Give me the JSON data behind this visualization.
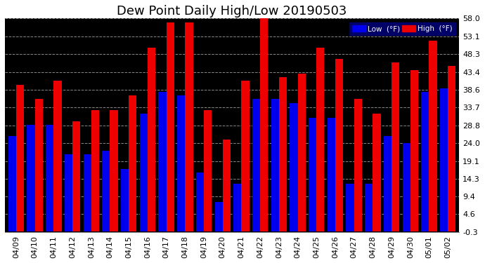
{
  "title": "Dew Point Daily High/Low 20190503",
  "dates": [
    "04/09",
    "04/10",
    "04/11",
    "04/12",
    "04/13",
    "04/14",
    "04/15",
    "04/16",
    "04/17",
    "04/18",
    "04/19",
    "04/20",
    "04/21",
    "04/22",
    "04/23",
    "04/24",
    "04/25",
    "04/26",
    "04/27",
    "04/28",
    "04/29",
    "04/30",
    "05/01",
    "05/02"
  ],
  "low": [
    26,
    29,
    29,
    21,
    21,
    22,
    17,
    32,
    38,
    37,
    16,
    8,
    13,
    36,
    36,
    35,
    31,
    31,
    13,
    13,
    26,
    24,
    38,
    39
  ],
  "high": [
    40,
    36,
    41,
    30,
    33,
    33,
    37,
    50,
    57,
    57,
    33,
    25,
    41,
    58,
    42,
    43,
    50,
    47,
    36,
    32,
    46,
    44,
    52,
    45
  ],
  "low_color": "#0000ee",
  "high_color": "#ee0000",
  "bg_color": "#000000",
  "plot_bg_color": "#000000",
  "grid_color": "#888888",
  "ylim": [
    -0.3,
    58.0
  ],
  "yticks": [
    -0.3,
    4.6,
    9.4,
    14.3,
    19.1,
    24.0,
    28.8,
    33.7,
    38.6,
    43.4,
    48.3,
    53.1,
    58.0
  ],
  "ytick_labels": [
    "-0.3",
    "4.6",
    "9.4",
    "14.3",
    "19.1",
    "24.0",
    "28.8",
    "33.7",
    "38.6",
    "43.4",
    "48.3",
    "53.1",
    "58.0"
  ],
  "title_fontsize": 13,
  "tick_fontsize": 8,
  "legend_low_label": "Low  (°F)",
  "legend_high_label": "High  (°F)",
  "legend_bg": "#000080",
  "title_color": "#000000",
  "outer_bg": "#ffffff"
}
